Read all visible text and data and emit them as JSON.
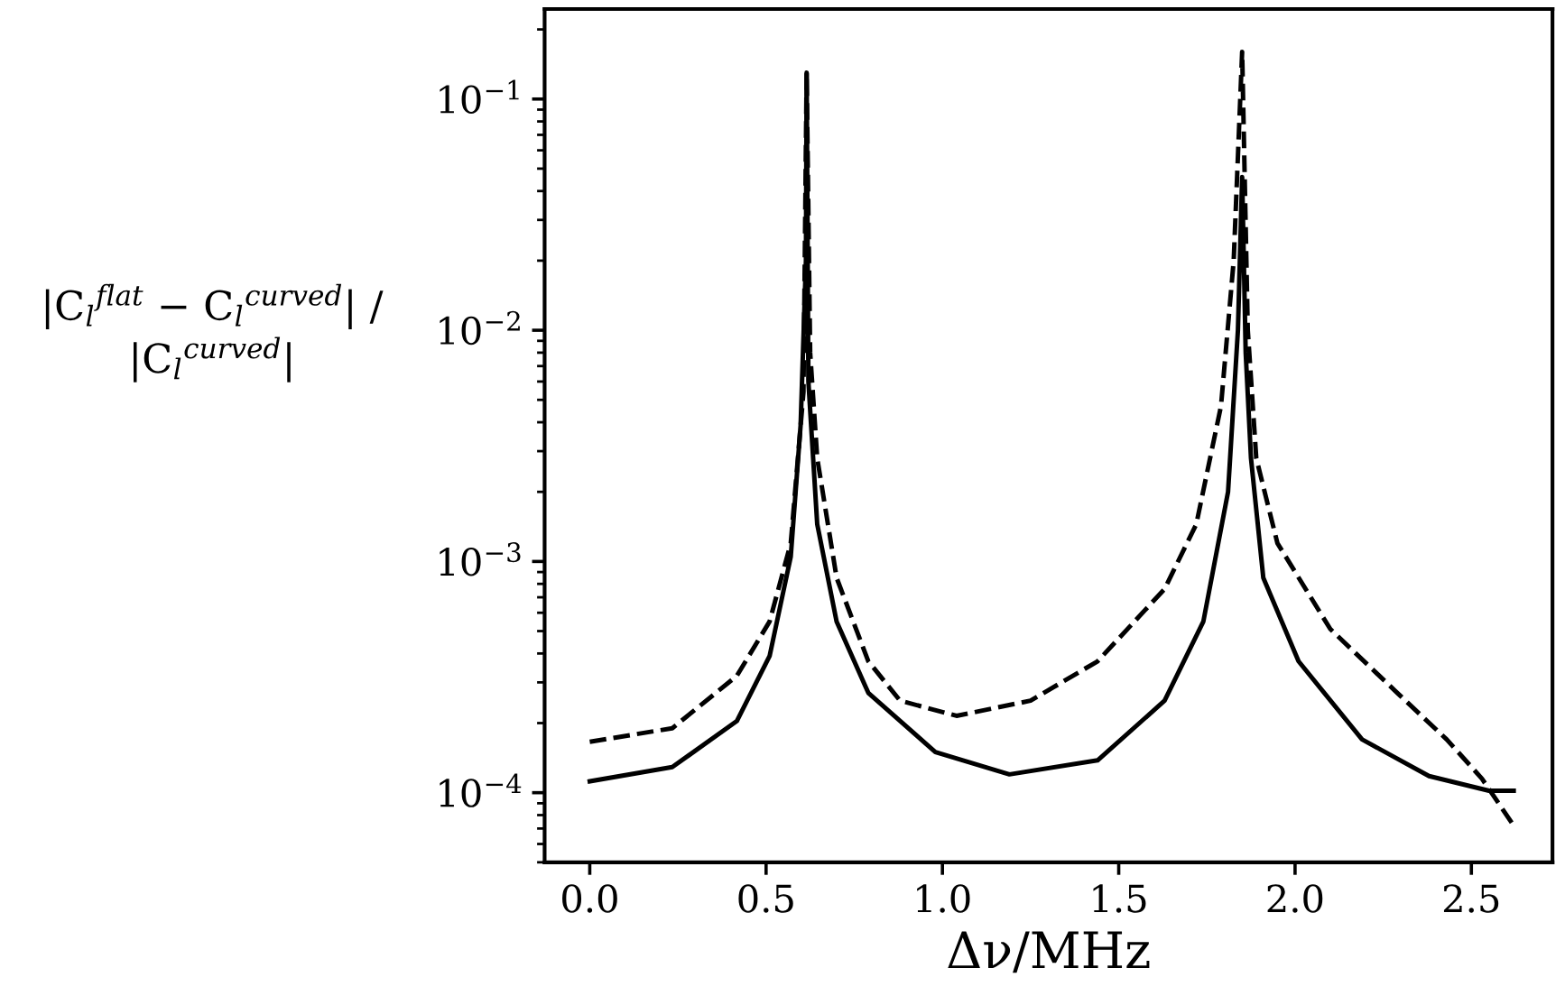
{
  "chart_data": {
    "type": "line",
    "xlabel": "Δν/MHz",
    "ylabel": "|C$_{l}$$^{flat}$ − C$_{l}$$^{curved}$| /\n|C$_{l}$$^{curved}$|",
    "log": "y",
    "grid": false,
    "legend": false,
    "marker": "none",
    "xlim": [
      -0.128,
      2.73
    ],
    "xticks": [
      {
        "value": 0,
        "label": "0.0"
      },
      0.5,
      {
        "value": 1,
        "label": "1.0"
      },
      1.5,
      {
        "value": 2,
        "label": "2.0"
      },
      2.5
    ],
    "ylim": [
      5e-05,
      0.245
    ],
    "yticks": [
      {
        "value": 0.0001,
        "label": "10$^{−4}$"
      },
      {
        "value": 0.001,
        "label": "10$^{−3}$"
      },
      {
        "value": 0.01,
        "label": "10$^{−2}$"
      },
      {
        "value": 0.1,
        "label": "10$^{−1}$"
      }
    ],
    "series": [
      {
        "color": "#000000",
        "line_style": "solid",
        "x": [
          0,
          0.234,
          0.417,
          0.51,
          0.57,
          0.598,
          0.613,
          0.615,
          0.62,
          0.645,
          0.7,
          0.79,
          0.98,
          1.19,
          1.44,
          1.63,
          1.74,
          1.81,
          1.838,
          1.85,
          1.86,
          1.875,
          1.91,
          2.01,
          2.19,
          2.38,
          2.55,
          2.62
        ],
        "values": [
          0.000112,
          0.000129,
          0.000204,
          0.00039,
          0.00105,
          0.0039,
          0.02,
          0.13,
          0.006,
          0.00145,
          0.00055,
          0.00027,
          0.00015,
          0.00012,
          0.000138,
          0.00025,
          0.00055,
          0.002,
          0.01,
          0.046,
          0.008,
          0.0028,
          0.00085,
          0.00037,
          0.00017,
          0.000118,
          0.000102,
          0.000102
        ]
      },
      {
        "color": "#000000",
        "line_style": "dashed",
        "x": [
          0,
          0.234,
          0.417,
          0.51,
          0.57,
          0.606,
          0.615,
          0.625,
          0.645,
          0.7,
          0.79,
          0.88,
          1.04,
          1.25,
          1.44,
          1.63,
          1.72,
          1.79,
          1.826,
          1.85,
          1.866,
          1.89,
          1.95,
          2.1,
          2.29,
          2.43,
          2.53,
          2.62
        ],
        "values": [
          0.000166,
          0.00019,
          0.00032,
          0.00055,
          0.0012,
          0.0054,
          0.13,
          0.008,
          0.0028,
          0.00085,
          0.00037,
          0.00025,
          0.000215,
          0.00025,
          0.00037,
          0.00076,
          0.00145,
          0.0047,
          0.02,
          0.16,
          0.01,
          0.0028,
          0.0012,
          0.00051,
          0.00027,
          0.00017,
          0.000115,
          7.2e-05
        ]
      }
    ]
  }
}
